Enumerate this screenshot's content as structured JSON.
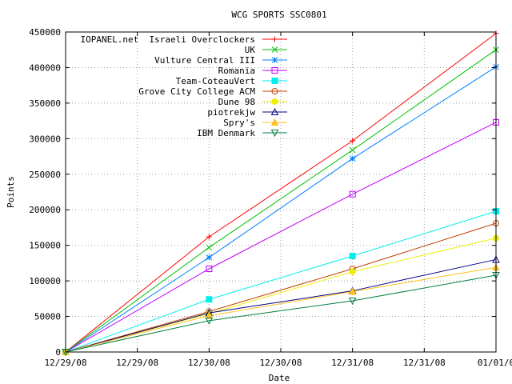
{
  "chart_data": {
    "type": "line",
    "title": "WCG SPORTS SSC0801",
    "xlabel": "Date",
    "ylabel": "Points",
    "x": [
      0,
      1,
      2,
      3
    ],
    "x_ticks": [
      "12/29/08",
      "12/29/08",
      "12/30/08",
      "12/30/08",
      "12/31/08",
      "12/31/08",
      "01/01/0"
    ],
    "x_tick_positions": [
      0,
      0.5,
      1,
      1.5,
      2,
      2.5,
      3
    ],
    "xlim": [
      0,
      3
    ],
    "ylim": [
      0,
      450000
    ],
    "y_ticks": [
      "0",
      "50000",
      "100000",
      "150000",
      "200000",
      "250000",
      "300000",
      "350000",
      "400000",
      "450000"
    ],
    "y_tick_values": [
      0,
      50000,
      100000,
      150000,
      200000,
      250000,
      300000,
      350000,
      400000,
      450000
    ],
    "grid": true,
    "legend_position": "top-left",
    "series": [
      {
        "name": "IOPANEL.net  Israeli Overclockers",
        "color": "#ff0000",
        "marker": "plus",
        "values": [
          0,
          162000,
          297000,
          448000
        ]
      },
      {
        "name": "UK",
        "color": "#00c000",
        "marker": "x",
        "values": [
          0,
          147000,
          284000,
          425000
        ]
      },
      {
        "name": "Vulture Central III",
        "color": "#0080ff",
        "marker": "star",
        "values": [
          0,
          133000,
          272000,
          401000
        ]
      },
      {
        "name": "Romania",
        "color": "#c000ff",
        "marker": "square",
        "values": [
          0,
          117000,
          222000,
          323000
        ]
      },
      {
        "name": "Team-CoteauVert",
        "color": "#00eeee",
        "marker": "square-filled",
        "values": [
          0,
          74000,
          135000,
          198000
        ]
      },
      {
        "name": "Grove City College ACM",
        "color": "#c04000",
        "marker": "circle",
        "values": [
          0,
          57000,
          117000,
          181000
        ]
      },
      {
        "name": "Dune 98",
        "color": "#eeee00",
        "marker": "circle-filled",
        "values": [
          0,
          54000,
          113000,
          160000
        ]
      },
      {
        "name": "piotrekjw",
        "color": "#000080",
        "marker": "triangle",
        "values": [
          0,
          55000,
          86000,
          130000
        ]
      },
      {
        "name": "Spry's",
        "color": "#ffc020",
        "marker": "triangle-filled",
        "values": [
          0,
          51000,
          85000,
          119000
        ]
      },
      {
        "name": "IBM Denmark",
        "color": "#008040",
        "marker": "triangle-down",
        "values": [
          0,
          44000,
          72000,
          108000
        ]
      }
    ]
  }
}
